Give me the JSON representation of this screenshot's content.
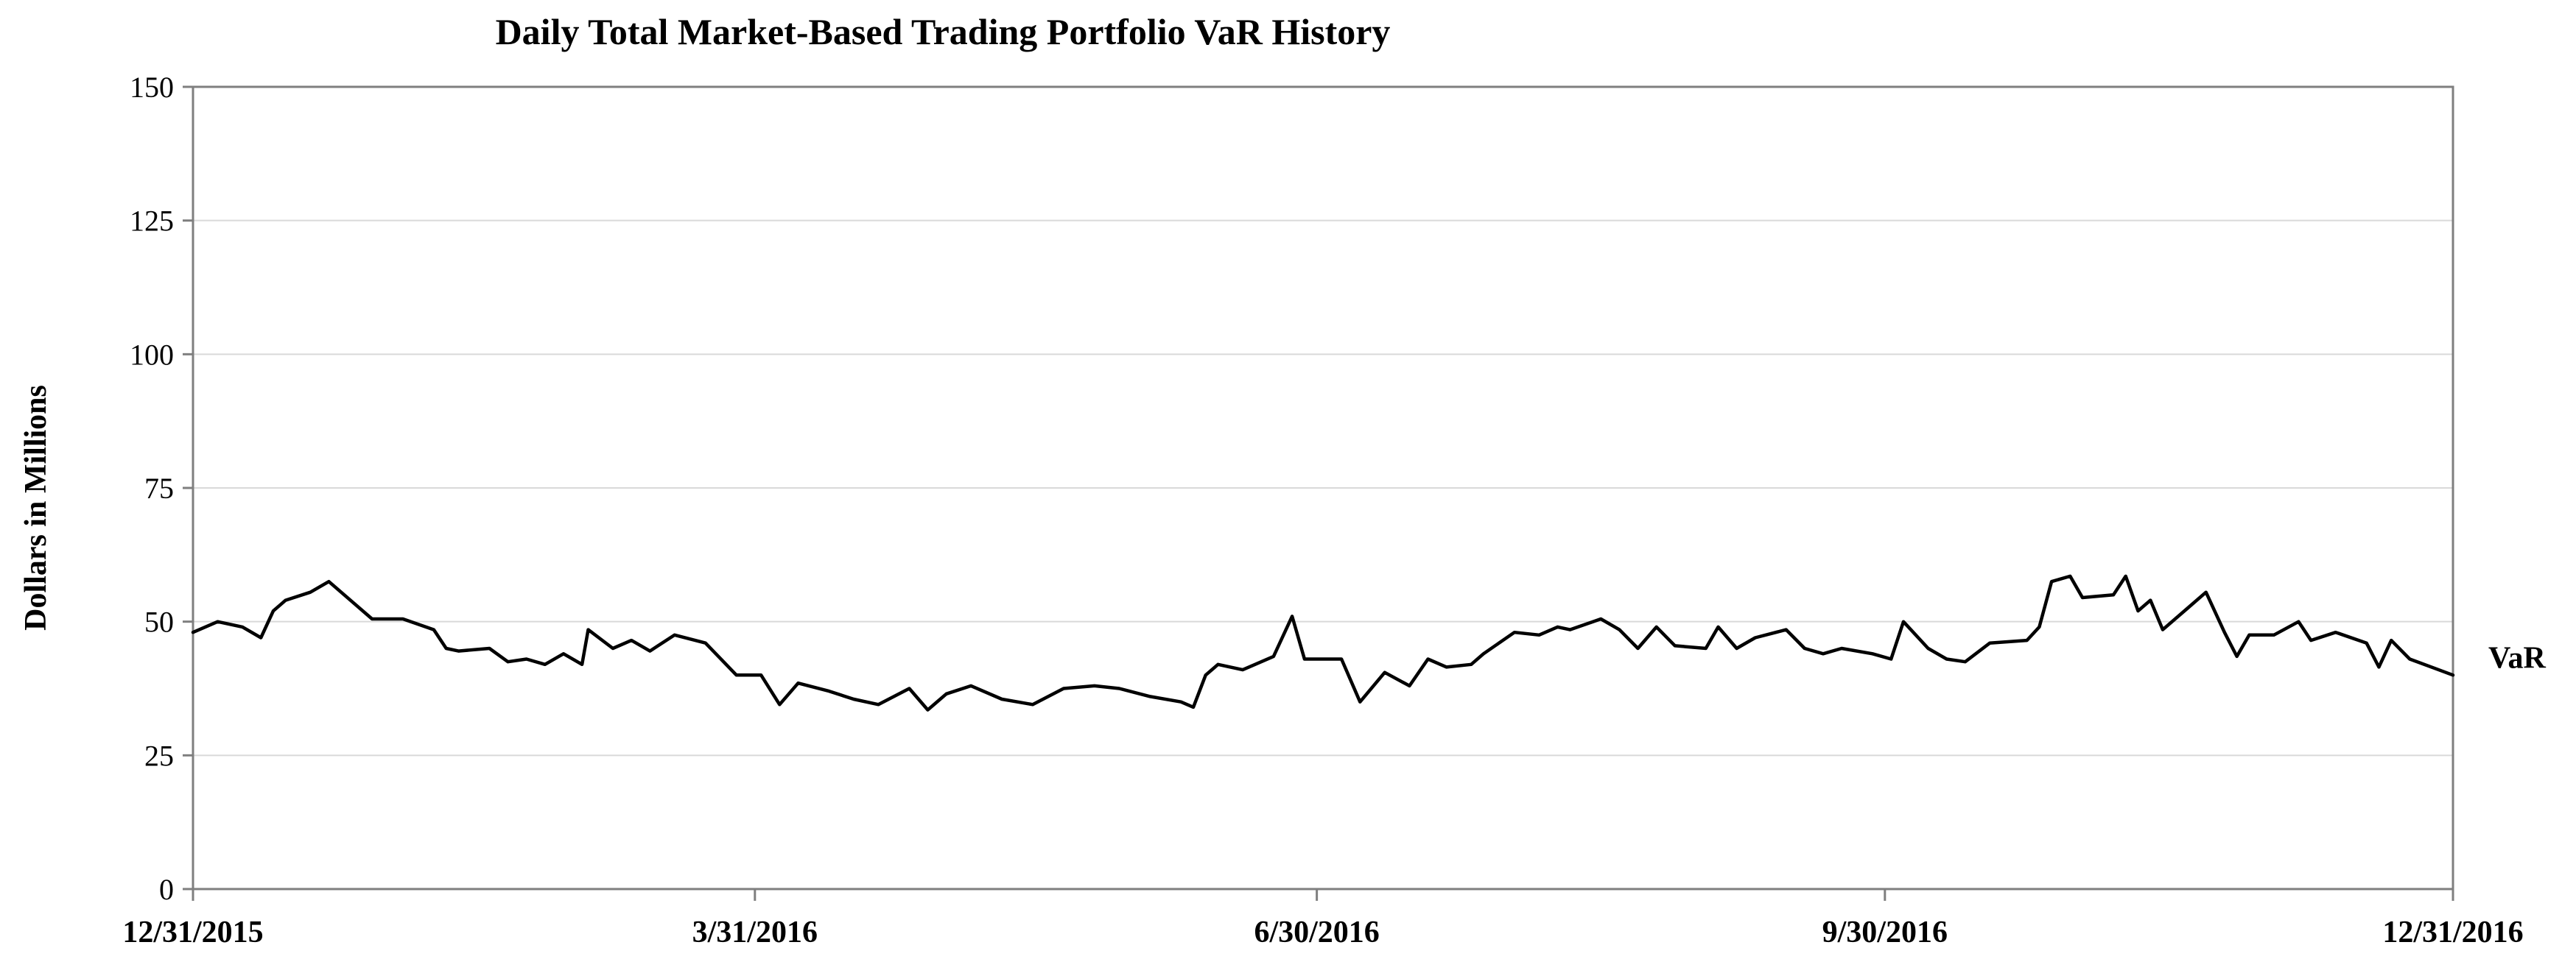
{
  "chart_data": {
    "type": "line",
    "title": "Daily Total Market-Based Trading Portfolio VaR History",
    "xlabel": "",
    "ylabel": "Dollars in Millions",
    "ylim": [
      0,
      150
    ],
    "xlim": [
      "2015-12-31",
      "2016-12-31"
    ],
    "yticks": [
      0,
      25,
      50,
      75,
      100,
      125,
      150
    ],
    "xticks": [
      "12/31/2015",
      "3/31/2016",
      "6/30/2016",
      "9/30/2016",
      "12/31/2016"
    ],
    "grid": true,
    "series": [
      {
        "name": "VaR",
        "color": "#000000",
        "points": [
          [
            "2015-12-31",
            48
          ],
          [
            "2016-01-04",
            50
          ],
          [
            "2016-01-08",
            49
          ],
          [
            "2016-01-11",
            47
          ],
          [
            "2016-01-13",
            52
          ],
          [
            "2016-01-15",
            54
          ],
          [
            "2016-01-19",
            55.5
          ],
          [
            "2016-01-22",
            57.5
          ],
          [
            "2016-01-26",
            53.5
          ],
          [
            "2016-01-29",
            50.5
          ],
          [
            "2016-02-03",
            50.5
          ],
          [
            "2016-02-08",
            48.5
          ],
          [
            "2016-02-10",
            45
          ],
          [
            "2016-02-12",
            44.5
          ],
          [
            "2016-02-17",
            45
          ],
          [
            "2016-02-20",
            42.5
          ],
          [
            "2016-02-23",
            43
          ],
          [
            "2016-02-26",
            42
          ],
          [
            "2016-02-29",
            44
          ],
          [
            "2016-03-03",
            42
          ],
          [
            "2016-03-04",
            48.5
          ],
          [
            "2016-03-08",
            45
          ],
          [
            "2016-03-11",
            46.5
          ],
          [
            "2016-03-14",
            44.5
          ],
          [
            "2016-03-18",
            47.5
          ],
          [
            "2016-03-23",
            46
          ],
          [
            "2016-03-28",
            40
          ],
          [
            "2016-04-01",
            40
          ],
          [
            "2016-04-04",
            34.5
          ],
          [
            "2016-04-07",
            38.5
          ],
          [
            "2016-04-12",
            37
          ],
          [
            "2016-04-16",
            35.5
          ],
          [
            "2016-04-20",
            34.5
          ],
          [
            "2016-04-25",
            37.5
          ],
          [
            "2016-04-28",
            33.5
          ],
          [
            "2016-05-01",
            36.5
          ],
          [
            "2016-05-05",
            38
          ],
          [
            "2016-05-10",
            35.5
          ],
          [
            "2016-05-15",
            34.5
          ],
          [
            "2016-05-20",
            37.5
          ],
          [
            "2016-05-25",
            38
          ],
          [
            "2016-05-29",
            37.5
          ],
          [
            "2016-06-03",
            36
          ],
          [
            "2016-06-08",
            35
          ],
          [
            "2016-06-10",
            34
          ],
          [
            "2016-06-12",
            40
          ],
          [
            "2016-06-14",
            42
          ],
          [
            "2016-06-18",
            41
          ],
          [
            "2016-06-20",
            42
          ],
          [
            "2016-06-23",
            43.5
          ],
          [
            "2016-06-26",
            51
          ],
          [
            "2016-06-28",
            43
          ],
          [
            "2016-07-01",
            43
          ],
          [
            "2016-07-04",
            43
          ],
          [
            "2016-07-07",
            35
          ],
          [
            "2016-07-11",
            40.5
          ],
          [
            "2016-07-15",
            38
          ],
          [
            "2016-07-18",
            43
          ],
          [
            "2016-07-21",
            41.5
          ],
          [
            "2016-07-25",
            42
          ],
          [
            "2016-07-27",
            44
          ],
          [
            "2016-08-01",
            48
          ],
          [
            "2016-08-05",
            47.5
          ],
          [
            "2016-08-08",
            49
          ],
          [
            "2016-08-10",
            48.5
          ],
          [
            "2016-08-15",
            50.5
          ],
          [
            "2016-08-18",
            48.5
          ],
          [
            "2016-08-21",
            45
          ],
          [
            "2016-08-24",
            49
          ],
          [
            "2016-08-27",
            45.5
          ],
          [
            "2016-09-01",
            45
          ],
          [
            "2016-09-03",
            49
          ],
          [
            "2016-09-06",
            45
          ],
          [
            "2016-09-09",
            47
          ],
          [
            "2016-09-14",
            48.5
          ],
          [
            "2016-09-17",
            45
          ],
          [
            "2016-09-20",
            44
          ],
          [
            "2016-09-23",
            45
          ],
          [
            "2016-09-28",
            44
          ],
          [
            "2016-10-01",
            43
          ],
          [
            "2016-10-03",
            50
          ],
          [
            "2016-10-07",
            45
          ],
          [
            "2016-10-10",
            43
          ],
          [
            "2016-10-13",
            42.5
          ],
          [
            "2016-10-17",
            46
          ],
          [
            "2016-10-23",
            46.5
          ],
          [
            "2016-10-25",
            49
          ],
          [
            "2016-10-27",
            57.5
          ],
          [
            "2016-10-30",
            58.5
          ],
          [
            "2016-11-01",
            54.5
          ],
          [
            "2016-11-06",
            55
          ],
          [
            "2016-11-08",
            58.5
          ],
          [
            "2016-11-10",
            52
          ],
          [
            "2016-11-12",
            54
          ],
          [
            "2016-11-14",
            48.5
          ],
          [
            "2016-11-18",
            52.5
          ],
          [
            "2016-11-21",
            55.5
          ],
          [
            "2016-11-24",
            48
          ],
          [
            "2016-11-26",
            43.5
          ],
          [
            "2016-11-28",
            47.5
          ],
          [
            "2016-12-02",
            47.5
          ],
          [
            "2016-12-06",
            50
          ],
          [
            "2016-12-08",
            46.5
          ],
          [
            "2016-12-12",
            48
          ],
          [
            "2016-12-17",
            46
          ],
          [
            "2016-12-19",
            41.5
          ],
          [
            "2016-12-21",
            46.5
          ],
          [
            "2016-12-24",
            43
          ],
          [
            "2016-12-31",
            40
          ]
        ]
      }
    ]
  }
}
